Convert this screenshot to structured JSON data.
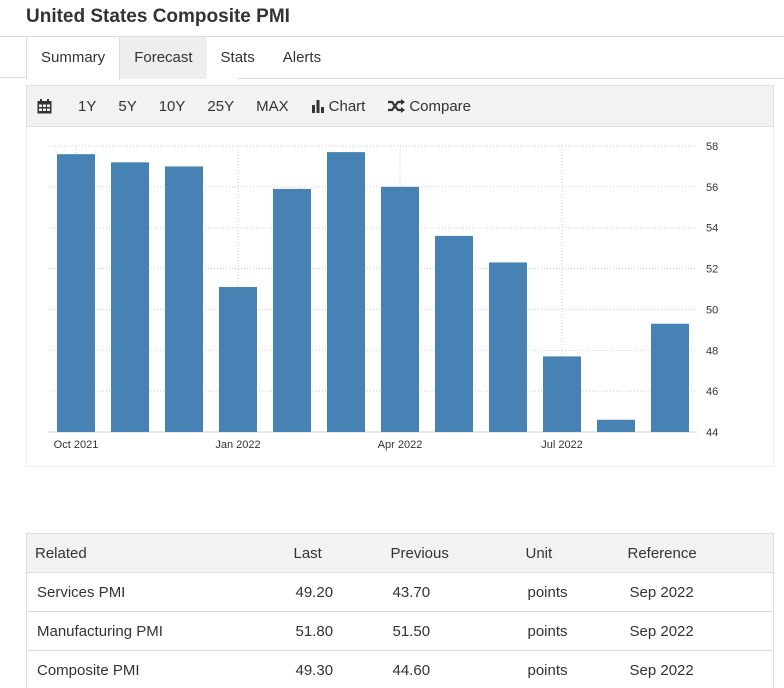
{
  "page": {
    "title": "United States Composite PMI"
  },
  "tabs": [
    {
      "label": "Summary"
    },
    {
      "label": "Forecast"
    },
    {
      "label": "Stats"
    },
    {
      "label": "Alerts"
    }
  ],
  "toolbar": {
    "calendar_icon": "calendar-icon",
    "ranges": [
      "1Y",
      "5Y",
      "10Y",
      "25Y",
      "MAX"
    ],
    "chart_label": "Chart",
    "compare_label": "Compare"
  },
  "chart_data": {
    "type": "bar",
    "title": "",
    "xlabel": "",
    "ylabel": "",
    "categories": [
      "Oct 2021",
      "Nov 2021",
      "Dec 2021",
      "Jan 2022",
      "Feb 2022",
      "Mar 2022",
      "Apr 2022",
      "May 2022",
      "Jun 2022",
      "Jul 2022",
      "Aug 2022",
      "Sep 2022"
    ],
    "values": [
      57.6,
      57.2,
      57.0,
      51.1,
      55.9,
      57.7,
      56.0,
      53.6,
      52.3,
      47.7,
      44.6,
      49.3
    ],
    "x_tick_labels": [
      "Oct 2021",
      "Jan 2022",
      "Apr 2022",
      "Jul 2022"
    ],
    "x_tick_indices": [
      0,
      3,
      6,
      9
    ],
    "ylim": [
      44,
      58
    ],
    "y_ticks": [
      44,
      46,
      48,
      50,
      52,
      54,
      56,
      58
    ],
    "y_axis_side": "right",
    "grid": true,
    "bar_color": "#4682b4"
  },
  "related": {
    "headers": [
      "Related",
      "Last",
      "Previous",
      "Unit",
      "Reference"
    ],
    "rows": [
      [
        "Services PMI",
        "49.20",
        "43.70",
        "points",
        "Sep 2022"
      ],
      [
        "Manufacturing PMI",
        "51.80",
        "51.50",
        "points",
        "Sep 2022"
      ],
      [
        "Composite PMI",
        "49.30",
        "44.60",
        "points",
        "Sep 2022"
      ]
    ]
  }
}
